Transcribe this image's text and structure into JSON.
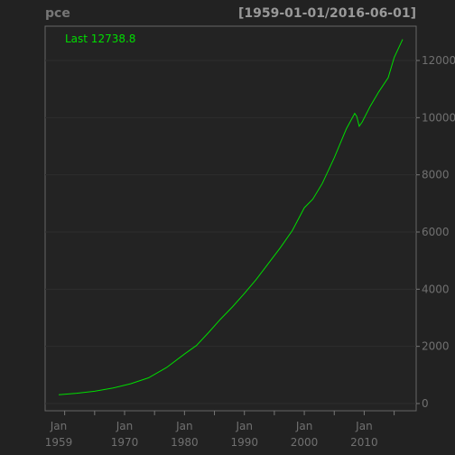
{
  "header": {
    "series_name": "pce",
    "date_range": "[1959-01-01/2016-06-01]"
  },
  "legend": {
    "last_label": "Last 12738.8"
  },
  "colors": {
    "background": "#222222",
    "plot_background": "#232323",
    "series_line": "#00dd00",
    "grid": "#2e2e2e",
    "axis_text": "#707070"
  },
  "chart_data": {
    "type": "line",
    "title": "pce",
    "date_range": "[1959-01-01/2016-06-01]",
    "xlabel": "",
    "ylabel": "",
    "x_range": [
      "1959-01-01",
      "2016-06-01"
    ],
    "ylim": [
      0,
      13000
    ],
    "grid": true,
    "y_axis_position": "right",
    "legend_placement": "top-left",
    "y_ticks": [
      0,
      2000,
      4000,
      6000,
      8000,
      10000,
      12000
    ],
    "y_tick_labels": [
      "0",
      "2000",
      "4000",
      "6000",
      "8000",
      "10000",
      "12000"
    ],
    "x_tick_labels": [
      {
        "date": "1959-01-01",
        "line1": "Jan",
        "line2": "1959"
      },
      {
        "date": "1970-01-01",
        "line1": "Jan",
        "line2": "1970"
      },
      {
        "date": "1980-01-01",
        "line1": "Jan",
        "line2": "1980"
      },
      {
        "date": "1990-01-01",
        "line1": "Jan",
        "line2": "1990"
      },
      {
        "date": "2000-01-01",
        "line1": "Jan",
        "line2": "2000"
      },
      {
        "date": "2010-01-01",
        "line1": "Jan",
        "line2": "2010"
      }
    ],
    "minor_tick_years": [
      1960,
      1965,
      1970,
      1975,
      1980,
      1985,
      1990,
      1995,
      2000,
      2005,
      2010,
      2015
    ],
    "series": [
      {
        "name": "pce",
        "x": [
          "1959-01-01",
          "1962-01-01",
          "1965-01-01",
          "1968-01-01",
          "1971-01-01",
          "1974-01-01",
          "1977-01-01",
          "1980-01-01",
          "1982-01-01",
          "1984-01-01",
          "1986-01-01",
          "1988-01-01",
          "1990-01-01",
          "1992-01-01",
          "1994-01-01",
          "1996-01-01",
          "1998-01-01",
          "2000-01-01",
          "2001-06-01",
          "2003-01-01",
          "2005-01-01",
          "2007-01-01",
          "2008-06-01",
          "2008-10-01",
          "2009-03-01",
          "2009-09-01",
          "2011-01-01",
          "2012-06-01",
          "2014-01-01",
          "2015-01-01",
          "2016-06-01"
        ],
        "values": [
          307,
          360,
          430,
          540,
          690,
          900,
          1260,
          1730,
          2030,
          2480,
          2950,
          3380,
          3850,
          4350,
          4900,
          5450,
          6050,
          6850,
          7150,
          7700,
          8600,
          9600,
          10150,
          10050,
          9700,
          9850,
          10400,
          10900,
          11400,
          12100,
          12738.8
        ]
      }
    ]
  }
}
